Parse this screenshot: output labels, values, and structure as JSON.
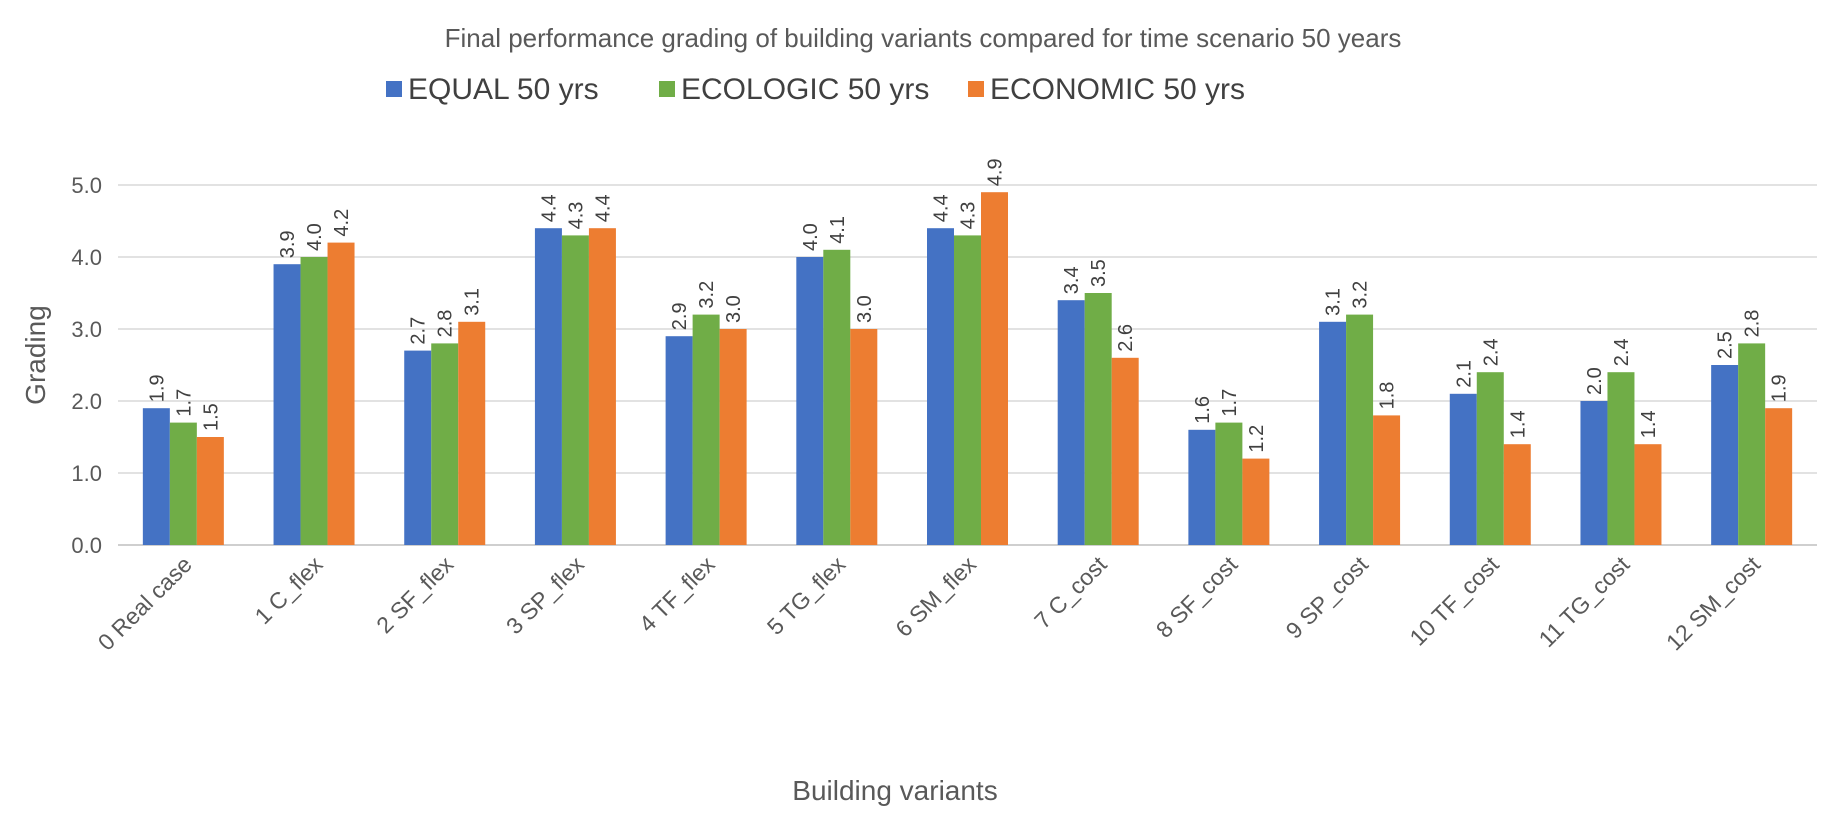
{
  "chart_data": {
    "type": "bar",
    "title": "Final performance grading of building variants compared for time scenario 50 years",
    "xlabel": "Building variants",
    "ylabel": "Grading",
    "ylim": [
      0,
      5
    ],
    "yticks": [
      "0.0",
      "1.0",
      "2.0",
      "3.0",
      "4.0",
      "5.0"
    ],
    "grid": true,
    "legend_position": "top",
    "categories": [
      "0 Real case",
      "1 C_flex",
      "2 SF_flex",
      "3 SP_flex",
      "4 TF_flex",
      "5 TG_flex",
      "6 SM_flex",
      "7 C_cost",
      "8 SF_cost",
      "9 SP_cost",
      "10 TF_cost",
      "11 TG_cost",
      "12 SM_cost"
    ],
    "series": [
      {
        "name": "EQUAL 50 yrs",
        "color": "#4472c4",
        "values": [
          1.9,
          3.9,
          2.7,
          4.4,
          2.9,
          4.0,
          4.4,
          3.4,
          1.6,
          3.1,
          2.1,
          2.0,
          2.5
        ],
        "labels": [
          "1.9",
          "3.9",
          "2.7",
          "4.4",
          "2.9",
          "4.0",
          "4.4",
          "3.4",
          "1.6",
          "3.1",
          "2.1",
          "2.0",
          "2.5"
        ]
      },
      {
        "name": "ECOLOGIC 50 yrs",
        "color": "#70ad47",
        "values": [
          1.7,
          4.0,
          2.8,
          4.3,
          3.2,
          4.1,
          4.3,
          3.5,
          1.7,
          3.2,
          2.4,
          2.4,
          2.8
        ],
        "labels": [
          "1.7",
          "4.0",
          "2.8",
          "4.3",
          "3.2",
          "4.1",
          "4.3",
          "3.5",
          "1.7",
          "3.2",
          "2.4",
          "2.4",
          "2.8"
        ]
      },
      {
        "name": "ECONOMIC 50 yrs",
        "color": "#ed7d31",
        "values": [
          1.5,
          4.2,
          3.1,
          4.4,
          3.0,
          3.0,
          4.9,
          2.6,
          1.2,
          1.8,
          1.4,
          1.4,
          1.9
        ],
        "labels": [
          "1.5",
          "4.2",
          "3.1",
          "4.4",
          "3.0",
          "3.0",
          "4.9",
          "2.6",
          "1.2",
          "1.8",
          "1.4",
          "1.4",
          "1.9"
        ]
      }
    ]
  }
}
